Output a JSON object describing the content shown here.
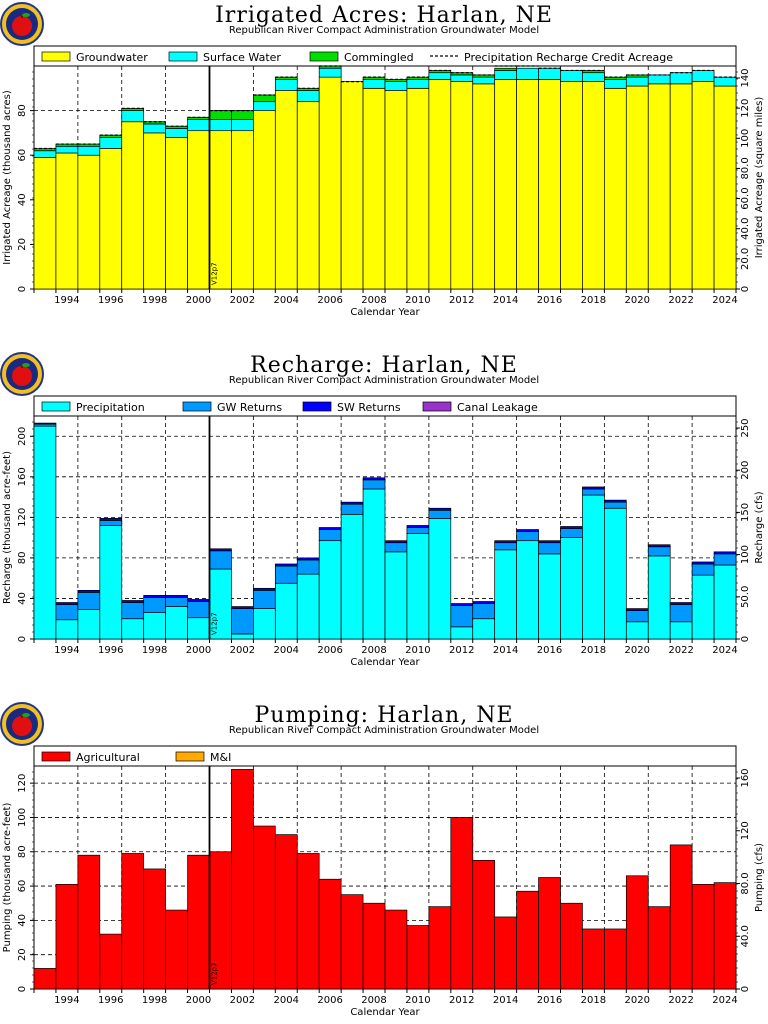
{
  "panels": [
    {
      "title": "Irrigated Acres: Harlan, NE",
      "subtitle": "Republican River Compact Administration Groundwater Model",
      "logo": "apple-seal-icon",
      "chart_data": {
        "type": "bar",
        "stacked": true,
        "title": "Irrigated Acres: Harlan, NE",
        "xlabel": "Calendar Year",
        "ylabel": "Irrigated Acreage (thousand acres)",
        "ylabel_right": "Irrigated Acreage (square miles)",
        "ylim": [
          0,
          100
        ],
        "yticks": [
          0,
          20,
          40,
          60,
          80
        ],
        "yticks_right": [
          "0",
          "20.0",
          "40.0",
          "60.0",
          "80.0",
          "100",
          "120",
          "140"
        ],
        "xticks": [
          "1994",
          "1996",
          "1998",
          "2000",
          "2002",
          "2004",
          "2006",
          "2008",
          "2010",
          "2012",
          "2014",
          "2016",
          "2018",
          "2020",
          "2022",
          "2024"
        ],
        "categories": [
          1993,
          1994,
          1995,
          1996,
          1997,
          1998,
          1999,
          2000,
          2001,
          2002,
          2003,
          2004,
          2005,
          2006,
          2007,
          2008,
          2009,
          2010,
          2011,
          2012,
          2013,
          2014,
          2015,
          2016,
          2017,
          2018,
          2019,
          2020,
          2021,
          2022,
          2023,
          2024
        ],
        "marker_label": "V12p7",
        "marker_x": 2000.5,
        "legend_position": "top",
        "series": [
          {
            "name": "Groundwater",
            "color": "#ffff00",
            "values": [
              59,
              61,
              60,
              63,
              75,
              70,
              68,
              71,
              71,
              71,
              80,
              89,
              84,
              95,
              93,
              90,
              89,
              90,
              94,
              93,
              92,
              94,
              94,
              94,
              93,
              93,
              90,
              91,
              92,
              92,
              93,
              91
            ]
          },
          {
            "name": "Surface Water",
            "color": "#00ffff",
            "values": [
              3,
              3,
              4,
              5,
              5,
              4,
              4,
              5,
              5,
              5,
              4,
              5,
              5,
              4,
              0,
              4,
              4,
              4,
              3,
              3,
              3,
              4,
              5,
              5,
              5,
              4,
              4,
              4,
              4,
              5,
              5,
              4
            ]
          },
          {
            "name": "Commingled",
            "color": "#00dd00",
            "values": [
              1,
              1,
              1,
              1,
              1,
              1,
              1,
              1,
              4,
              4,
              3,
              1,
              1,
              1,
              0,
              1,
              1,
              1,
              1,
              1,
              1,
              1,
              0,
              0,
              0,
              1,
              1,
              1,
              0,
              0,
              0,
              0
            ]
          },
          {
            "name": "Precipitation Recharge Credit Acreage",
            "style": "dashed",
            "color": "#000000",
            "values": [
              63,
              65,
              65,
              69,
              81,
              75,
              73,
              77,
              80,
              80,
              87,
              95,
              90,
              100,
              93,
              95,
              94,
              95,
              98,
              97,
              96,
              100,
              100,
              99,
              98,
              98,
              95,
              96,
              96,
              97,
              98,
              95
            ]
          }
        ]
      }
    },
    {
      "title": "Recharge: Harlan, NE",
      "subtitle": "Republican River Compact Administration Groundwater Model",
      "logo": "apple-seal-icon",
      "chart_data": {
        "type": "bar",
        "stacked": true,
        "title": "Recharge: Harlan, NE",
        "xlabel": "Calendar Year",
        "ylabel": "Recharge (thousand acre-feet)",
        "ylabel_right": "Recharge (cfs)",
        "ylim": [
          0,
          220
        ],
        "yticks": [
          0,
          40,
          80,
          120,
          160,
          200
        ],
        "yticks_right": [
          "0",
          "50.0",
          "100",
          "150",
          "200",
          "250"
        ],
        "xticks": [
          "1994",
          "1996",
          "1998",
          "2000",
          "2002",
          "2004",
          "2006",
          "2008",
          "2010",
          "2012",
          "2014",
          "2016",
          "2018",
          "2020",
          "2022",
          "2024"
        ],
        "categories": [
          1993,
          1994,
          1995,
          1996,
          1997,
          1998,
          1999,
          2000,
          2001,
          2002,
          2003,
          2004,
          2005,
          2006,
          2007,
          2008,
          2009,
          2010,
          2011,
          2012,
          2013,
          2014,
          2015,
          2016,
          2017,
          2018,
          2019,
          2020,
          2021,
          2022,
          2023,
          2024
        ],
        "marker_label": "V12p7",
        "marker_x": 2000.5,
        "legend_position": "top",
        "series": [
          {
            "name": "Precipitation",
            "color": "#00ffff",
            "values": [
              210,
              19,
              29,
              112,
              20,
              26,
              32,
              21,
              69,
              5,
              30,
              55,
              64,
              97,
              123,
              148,
              86,
              104,
              119,
              12,
              20,
              88,
              97,
              84,
              100,
              142,
              129,
              17,
              82,
              17,
              63,
              73
            ]
          },
          {
            "name": "GW Returns",
            "color": "#0099ff",
            "values": [
              2,
              15,
              17,
              5,
              16,
              15,
              9,
              16,
              18,
              25,
              18,
              17,
              14,
              11,
              10,
              9,
              9,
              6,
              8,
              21,
              15,
              7,
              9,
              11,
              9,
              6,
              6,
              11,
              9,
              17,
              11,
              11
            ]
          },
          {
            "name": "SW Returns",
            "color": "#0000ff",
            "values": [
              1,
              2,
              2,
              2,
              2,
              2,
              2,
              2,
              2,
              2,
              2,
              2,
              2,
              2,
              2,
              2,
              2,
              2,
              2,
              2,
              2,
              2,
              2,
              2,
              2,
              2,
              2,
              2,
              2,
              2,
              2,
              2
            ]
          },
          {
            "name": "Canal Leakage",
            "color": "#9933cc",
            "values": [
              0,
              0,
              0,
              0,
              0,
              0,
              0,
              0,
              0,
              0,
              0,
              0,
              0,
              0,
              0,
              0,
              0,
              0,
              0,
              0,
              0,
              0,
              0,
              0,
              0,
              0,
              0,
              0,
              0,
              0,
              0,
              0
            ]
          }
        ]
      }
    },
    {
      "title": "Pumping: Harlan, NE",
      "subtitle": "Republican River Compact Administration Groundwater Model",
      "logo": "apple-seal-icon",
      "chart_data": {
        "type": "bar",
        "stacked": true,
        "title": "Pumping: Harlan, NE",
        "xlabel": "Calendar Year",
        "ylabel": "Pumping (thousand acre-feet)",
        "ylabel_right": "Pumping (cfs)",
        "ylim": [
          0,
          130
        ],
        "yticks": [
          0,
          20,
          40,
          60,
          80,
          100,
          120
        ],
        "yticks_right": [
          "0",
          "40.0",
          "80.0",
          "120",
          "160"
        ],
        "xticks": [
          "1994",
          "1996",
          "1998",
          "2000",
          "2002",
          "2004",
          "2006",
          "2008",
          "2010",
          "2012",
          "2014",
          "2016",
          "2018",
          "2020",
          "2022",
          "2024"
        ],
        "categories": [
          1993,
          1994,
          1995,
          1996,
          1997,
          1998,
          1999,
          2000,
          2001,
          2002,
          2003,
          2004,
          2005,
          2006,
          2007,
          2008,
          2009,
          2010,
          2011,
          2012,
          2013,
          2014,
          2015,
          2016,
          2017,
          2018,
          2019,
          2020,
          2021,
          2022,
          2023,
          2024
        ],
        "marker_label": "V12p7",
        "marker_x": 2000.5,
        "legend_position": "top",
        "series": [
          {
            "name": "Agricultural",
            "color": "#ff0000",
            "values": [
              12,
              61,
              78,
              32,
              79,
              70,
              46,
              78,
              80,
              128,
              95,
              90,
              79,
              64,
              55,
              50,
              46,
              37,
              48,
              100,
              75,
              42,
              57,
              65,
              50,
              35,
              35,
              66,
              48,
              84,
              61,
              62
            ]
          },
          {
            "name": "M&I",
            "color": "#ffaa00",
            "values": [
              0,
              0,
              0,
              0,
              0,
              0,
              0,
              0,
              0,
              0,
              0,
              0,
              0,
              0,
              0,
              0,
              0,
              0,
              0,
              0,
              0,
              0,
              0,
              0,
              0,
              0,
              0,
              0,
              0,
              0,
              0,
              0
            ]
          }
        ]
      }
    }
  ]
}
